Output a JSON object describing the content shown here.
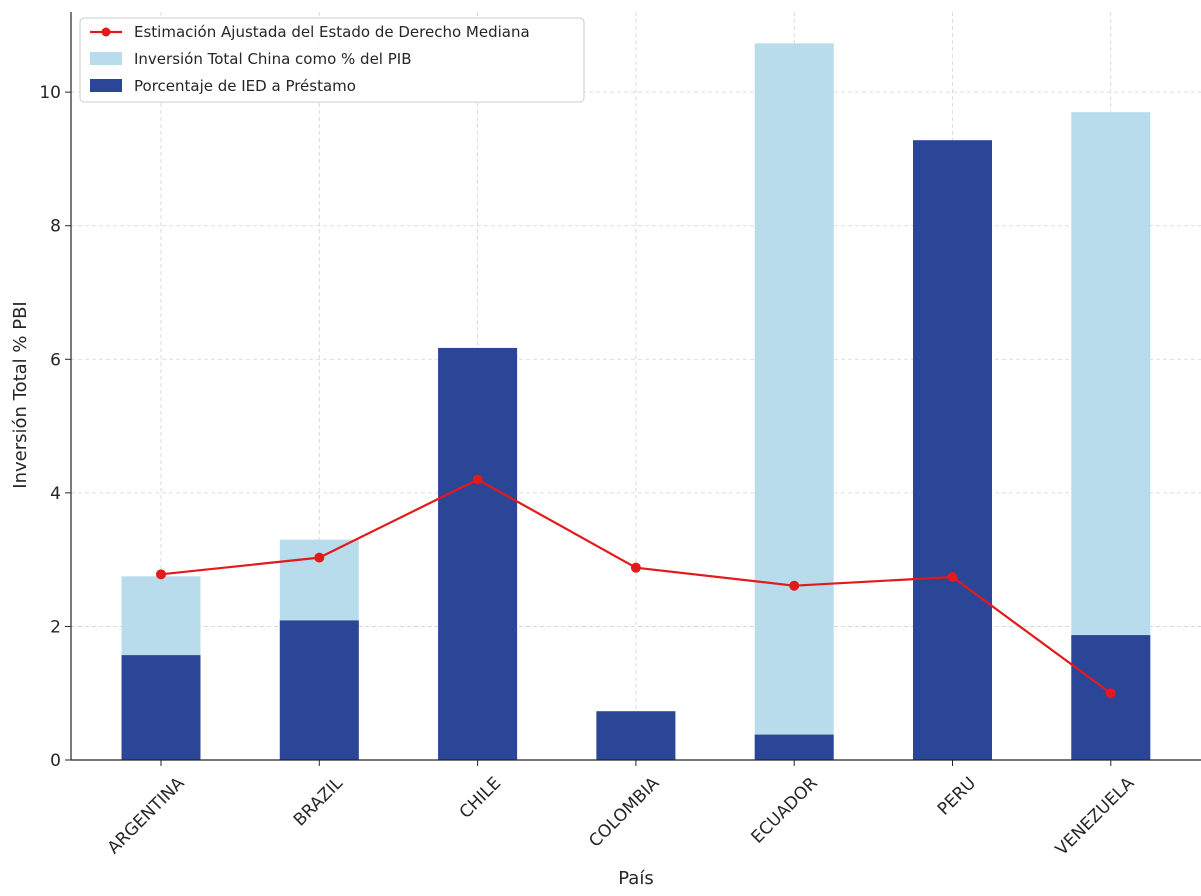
{
  "chart_data": {
    "type": "bar",
    "categories": [
      "ARGENTINA",
      "BRAZIL",
      "CHILE",
      "COLOMBIA",
      "ECUADOR",
      "PERU",
      "VENEZUELA"
    ],
    "series": [
      {
        "name": "Inversión Total China como % del PIB",
        "kind": "bar",
        "color": "#b9dcec",
        "values": [
          2.75,
          3.3,
          6.17,
          0.73,
          10.73,
          9.28,
          9.7
        ]
      },
      {
        "name": "Porcentaje de IED a Préstamo",
        "kind": "bar",
        "color": "#2b4597",
        "values": [
          1.57,
          2.09,
          6.17,
          0.73,
          0.38,
          9.28,
          1.87
        ]
      },
      {
        "name": "Estimación Ajustada del Estado de Derecho Mediana",
        "kind": "line",
        "color": "#e31a1c",
        "values": [
          2.78,
          3.03,
          4.2,
          2.88,
          2.61,
          2.74,
          1.0
        ]
      }
    ],
    "title": "",
    "xlabel": "País",
    "ylabel": "Inversión Total % PBI",
    "ylim": [
      0,
      11.2
    ],
    "yticks": [
      0,
      2,
      4,
      6,
      8,
      10
    ],
    "grid": true,
    "legend_position": "top-left",
    "legend_order": [
      "Estimación Ajustada del Estado de Derecho Mediana",
      "Inversión Total China como % del PIB",
      "Porcentaje de IED a Préstamo"
    ]
  }
}
